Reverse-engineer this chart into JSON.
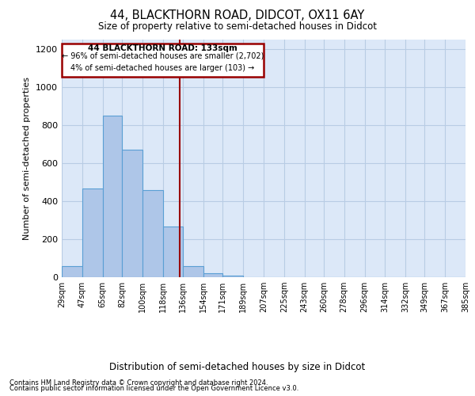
{
  "title_line1": "44, BLACKTHORN ROAD, DIDCOT, OX11 6AY",
  "title_line2": "Size of property relative to semi-detached houses in Didcot",
  "xlabel": "Distribution of semi-detached houses by size in Didcot",
  "ylabel": "Number of semi-detached properties",
  "footer_line1": "Contains HM Land Registry data © Crown copyright and database right 2024.",
  "footer_line2": "Contains public sector information licensed under the Open Government Licence v3.0.",
  "annotation_line1": "44 BLACKTHORN ROAD: 133sqm",
  "annotation_line2": "← 96% of semi-detached houses are smaller (2,702)",
  "annotation_line3": "4% of semi-detached houses are larger (103) →",
  "property_size": 133,
  "bin_edges": [
    29,
    47,
    65,
    82,
    100,
    118,
    136,
    154,
    171,
    189,
    207,
    225,
    243,
    260,
    278,
    296,
    314,
    332,
    349,
    367,
    385
  ],
  "bin_counts": [
    60,
    465,
    850,
    670,
    460,
    265,
    60,
    20,
    10,
    0,
    0,
    0,
    0,
    0,
    0,
    0,
    0,
    0,
    0,
    0
  ],
  "bar_color": "#aec6e8",
  "bar_edge_color": "#5a9fd4",
  "vline_color": "#990000",
  "box_color": "#990000",
  "background_color": "#dce8f8",
  "grid_color": "#b8cce4",
  "ylim": [
    0,
    1250
  ],
  "yticks": [
    0,
    200,
    400,
    600,
    800,
    1000,
    1200
  ]
}
